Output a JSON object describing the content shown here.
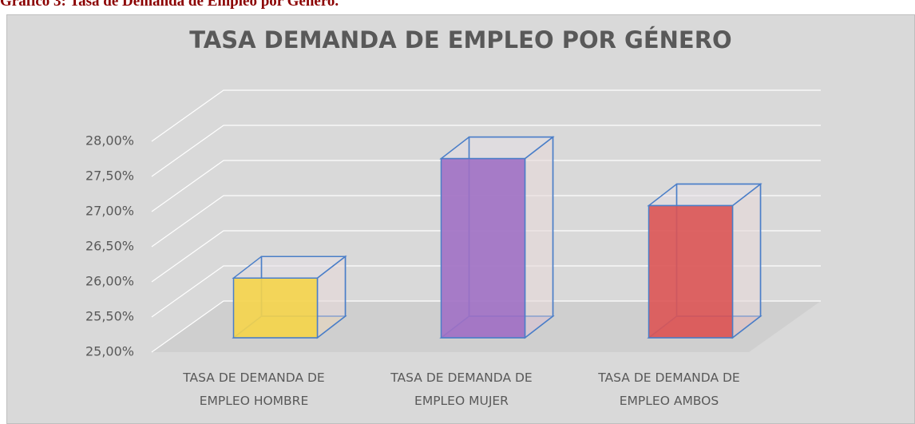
{
  "caption": "Gráfico 3: Tasa de Demanda de Empleo por Género.",
  "chart_data": {
    "type": "bar3d",
    "title": "TASA DEMANDA DE EMPLEO POR GÉNERO",
    "categories": [
      "TASA DE DEMANDA DE EMPLEO HOMBRE",
      "TASA DE DEMANDA DE EMPLEO MUJER",
      "TASA DE DEMANDA DE EMPLEO AMBOS"
    ],
    "values": [
      25.85,
      27.55,
      26.88
    ],
    "colors": [
      "#f5d44a",
      "#a070c4",
      "#dc5454"
    ],
    "edge_color": "#4a7ec8",
    "ylim": [
      25,
      28
    ],
    "yticks": [
      {
        "value": 25,
        "label": "25,00%"
      },
      {
        "value": 25.5,
        "label": "25,50%"
      },
      {
        "value": 26,
        "label": "26,00%"
      },
      {
        "value": 26.5,
        "label": "26,50%"
      },
      {
        "value": 27,
        "label": "27,00%"
      },
      {
        "value": 27.5,
        "label": "27,50%"
      },
      {
        "value": 28,
        "label": "28,00%"
      }
    ],
    "grid": true
  }
}
